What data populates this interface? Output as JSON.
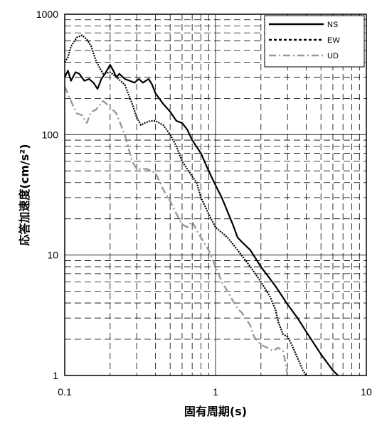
{
  "chart_data": {
    "type": "line",
    "xlabel": "固有周期(s)",
    "ylabel": "応答加速度(cm/s²)",
    "xscale": "log",
    "yscale": "log",
    "xlim": [
      0.1,
      10
    ],
    "ylim": [
      1,
      1000
    ],
    "grid": true,
    "legend_position": "top-right",
    "x_ticks": [
      "0.1",
      "1",
      "10"
    ],
    "y_ticks": [
      "1",
      "10",
      "100",
      "1000"
    ],
    "series": [
      {
        "name": "NS",
        "color": "#000000",
        "style": "solid",
        "points": [
          [
            0.1,
            300
          ],
          [
            0.105,
            340
          ],
          [
            0.11,
            280
          ],
          [
            0.118,
            330
          ],
          [
            0.125,
            320
          ],
          [
            0.135,
            280
          ],
          [
            0.145,
            290
          ],
          [
            0.155,
            270
          ],
          [
            0.165,
            240
          ],
          [
            0.175,
            290
          ],
          [
            0.185,
            320
          ],
          [
            0.2,
            380
          ],
          [
            0.21,
            340
          ],
          [
            0.22,
            300
          ],
          [
            0.23,
            320
          ],
          [
            0.25,
            290
          ],
          [
            0.27,
            280
          ],
          [
            0.29,
            270
          ],
          [
            0.31,
            290
          ],
          [
            0.33,
            270
          ],
          [
            0.36,
            290
          ],
          [
            0.38,
            260
          ],
          [
            0.4,
            220
          ],
          [
            0.45,
            180
          ],
          [
            0.5,
            155
          ],
          [
            0.55,
            130
          ],
          [
            0.6,
            125
          ],
          [
            0.65,
            110
          ],
          [
            0.7,
            90
          ],
          [
            0.8,
            70
          ],
          [
            0.9,
            50
          ],
          [
            1.0,
            38
          ],
          [
            1.1,
            30
          ],
          [
            1.2,
            23
          ],
          [
            1.3,
            18
          ],
          [
            1.4,
            14
          ],
          [
            1.5,
            12.8
          ],
          [
            1.7,
            11
          ],
          [
            2.0,
            8
          ],
          [
            2.5,
            5.5
          ],
          [
            3.0,
            3.9
          ],
          [
            3.5,
            3
          ],
          [
            4.0,
            2.3
          ],
          [
            5.0,
            1.5
          ],
          [
            6.0,
            1.1
          ],
          [
            6.5,
            1.0
          ]
        ]
      },
      {
        "name": "EW",
        "color": "#000000",
        "style": "dotted",
        "points": [
          [
            0.1,
            400
          ],
          [
            0.105,
            440
          ],
          [
            0.11,
            540
          ],
          [
            0.12,
            640
          ],
          [
            0.13,
            670
          ],
          [
            0.14,
            620
          ],
          [
            0.15,
            540
          ],
          [
            0.16,
            420
          ],
          [
            0.17,
            360
          ],
          [
            0.18,
            320
          ],
          [
            0.2,
            330
          ],
          [
            0.22,
            300
          ],
          [
            0.25,
            260
          ],
          [
            0.28,
            180
          ],
          [
            0.3,
            140
          ],
          [
            0.32,
            120
          ],
          [
            0.34,
            125
          ],
          [
            0.37,
            130
          ],
          [
            0.4,
            130
          ],
          [
            0.45,
            120
          ],
          [
            0.5,
            100
          ],
          [
            0.55,
            80
          ],
          [
            0.6,
            60
          ],
          [
            0.7,
            45
          ],
          [
            0.75,
            40
          ],
          [
            0.8,
            30
          ],
          [
            0.9,
            22
          ],
          [
            1.0,
            17
          ],
          [
            1.2,
            14
          ],
          [
            1.4,
            11
          ],
          [
            1.7,
            8
          ],
          [
            2.0,
            6
          ],
          [
            2.3,
            4.5
          ],
          [
            2.5,
            3.5
          ],
          [
            2.6,
            2.8
          ],
          [
            2.8,
            2.2
          ],
          [
            3.0,
            2.1
          ],
          [
            3.2,
            1.8
          ],
          [
            3.5,
            1.4
          ],
          [
            3.8,
            1.1
          ],
          [
            4.0,
            1.0
          ]
        ]
      },
      {
        "name": "UD",
        "color": "#999999",
        "style": "dashdot",
        "points": [
          [
            0.1,
            250
          ],
          [
            0.11,
            190
          ],
          [
            0.12,
            150
          ],
          [
            0.13,
            145
          ],
          [
            0.14,
            125
          ],
          [
            0.15,
            155
          ],
          [
            0.16,
            160
          ],
          [
            0.18,
            190
          ],
          [
            0.2,
            170
          ],
          [
            0.22,
            150
          ],
          [
            0.25,
            100
          ],
          [
            0.28,
            60
          ],
          [
            0.3,
            52
          ],
          [
            0.35,
            52
          ],
          [
            0.4,
            48
          ],
          [
            0.45,
            35
          ],
          [
            0.5,
            28
          ],
          [
            0.55,
            22
          ],
          [
            0.6,
            18
          ],
          [
            0.65,
            17
          ],
          [
            0.7,
            19
          ],
          [
            0.75,
            16
          ],
          [
            0.8,
            14
          ],
          [
            0.9,
            11
          ],
          [
            1.0,
            8
          ],
          [
            1.1,
            6
          ],
          [
            1.2,
            5
          ],
          [
            1.3,
            4.2
          ],
          [
            1.4,
            3.6
          ],
          [
            1.5,
            3.3
          ],
          [
            1.7,
            2.6
          ],
          [
            1.8,
            2.1
          ],
          [
            2.0,
            1.8
          ],
          [
            2.2,
            1.7
          ],
          [
            2.4,
            1.6
          ],
          [
            2.6,
            1.7
          ],
          [
            2.8,
            1.6
          ],
          [
            2.9,
            1.3
          ],
          [
            3.0,
            1.0
          ]
        ]
      }
    ]
  }
}
